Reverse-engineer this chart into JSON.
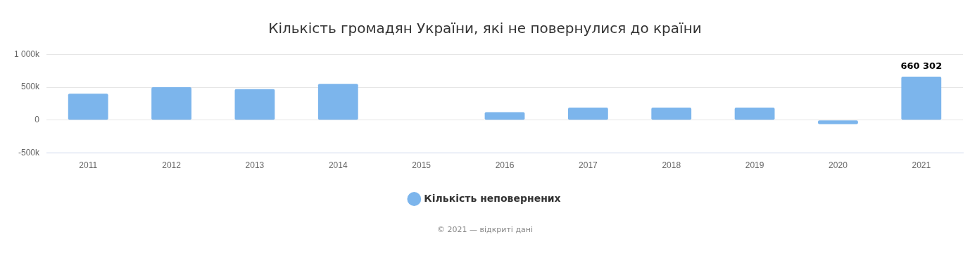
{
  "chart_data": {
    "type": "bar",
    "title": "Кількість громадян України, які не повернулися до країни",
    "categories": [
      "2011",
      "2012",
      "2013",
      "2014",
      "2015",
      "2016",
      "2017",
      "2018",
      "2019",
      "2020",
      "2021"
    ],
    "series": [
      {
        "name": "Кількість неповернених",
        "color": "#7cb5ec",
        "values": [
          400000,
          500000,
          470000,
          550000,
          null,
          120000,
          190000,
          190000,
          190000,
          -60000,
          660302
        ],
        "value_labels": [
          null,
          null,
          null,
          null,
          null,
          null,
          null,
          null,
          null,
          null,
          "660 302"
        ]
      }
    ],
    "ylim": [
      -500000,
      1000000
    ],
    "yticks": [
      {
        "value": -500000,
        "label": "-500k"
      },
      {
        "value": 0,
        "label": "0"
      },
      {
        "value": 500000,
        "label": "500k"
      },
      {
        "value": 1000000,
        "label": "1 000k"
      }
    ],
    "grid": "y",
    "legend": "bottom",
    "annotations": [
      "© 2021 — відкриті дані"
    ]
  }
}
